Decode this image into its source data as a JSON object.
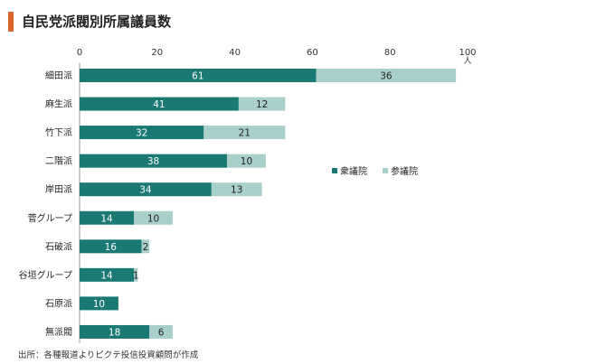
{
  "title": "自民党派閥別所属議員数",
  "source": "出所：各種報道よりピクテ投信投資顧問が作成",
  "colors": {
    "accent": "#d7622b",
    "shugiin": "#1a7a73",
    "sangiin": "#a9cfcb"
  },
  "chart_data": {
    "type": "bar",
    "orientation": "horizontal",
    "stacked": true,
    "title": "自民党派閥別所属議員数",
    "xlabel": "人",
    "ylabel": "",
    "xlim": [
      0,
      100
    ],
    "xticks": [
      0,
      20,
      40,
      60,
      80,
      100
    ],
    "legend_position": "right",
    "categories": [
      "細田派",
      "麻生派",
      "竹下派",
      "二階派",
      "岸田派",
      "菅グループ",
      "石破派",
      "谷垣グループ",
      "石原派",
      "無派閥"
    ],
    "series": [
      {
        "name": "衆議院",
        "values": [
          61,
          41,
          32,
          38,
          34,
          14,
          16,
          14,
          10,
          18
        ],
        "color": "#1a7a73"
      },
      {
        "name": "参議院",
        "values": [
          36,
          12,
          21,
          10,
          13,
          10,
          2,
          1,
          0,
          6
        ],
        "color": "#a9cfcb"
      }
    ]
  }
}
